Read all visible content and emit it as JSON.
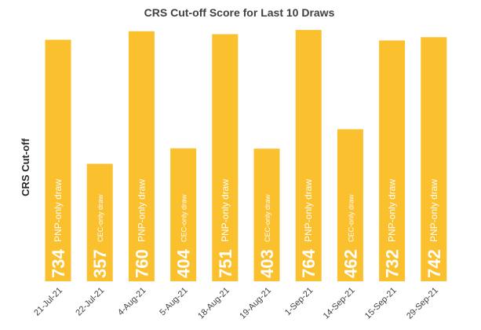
{
  "chart_data": {
    "type": "bar",
    "title": "CRS Cut-off Score for Last 10 Draws",
    "ylabel": "CRS Cut-off",
    "xlabel": "",
    "ylim": [
      0,
      800
    ],
    "grid": false,
    "legend": "none",
    "color": "#FBC02D",
    "categories": [
      "21-Jul-21",
      "22-Jul-21",
      "4-Aug-21",
      "5-Aug-21",
      "18-Aug-21",
      "19-Aug-21",
      "1-Sep-21",
      "14-Sep-21",
      "15-Sep-21",
      "29-Sep-21"
    ],
    "values": [
      734,
      357,
      760,
      404,
      751,
      403,
      764,
      462,
      732,
      742
    ],
    "annotations": [
      "PNP-only draw",
      "CEC-only draw",
      "PNP-only draw",
      "CEC-only draw",
      "PNP-only draw",
      "CEC-only draw",
      "PNP-only draw",
      "CEC-only draw",
      "PNP-only draw",
      "PNP-only draw"
    ]
  }
}
